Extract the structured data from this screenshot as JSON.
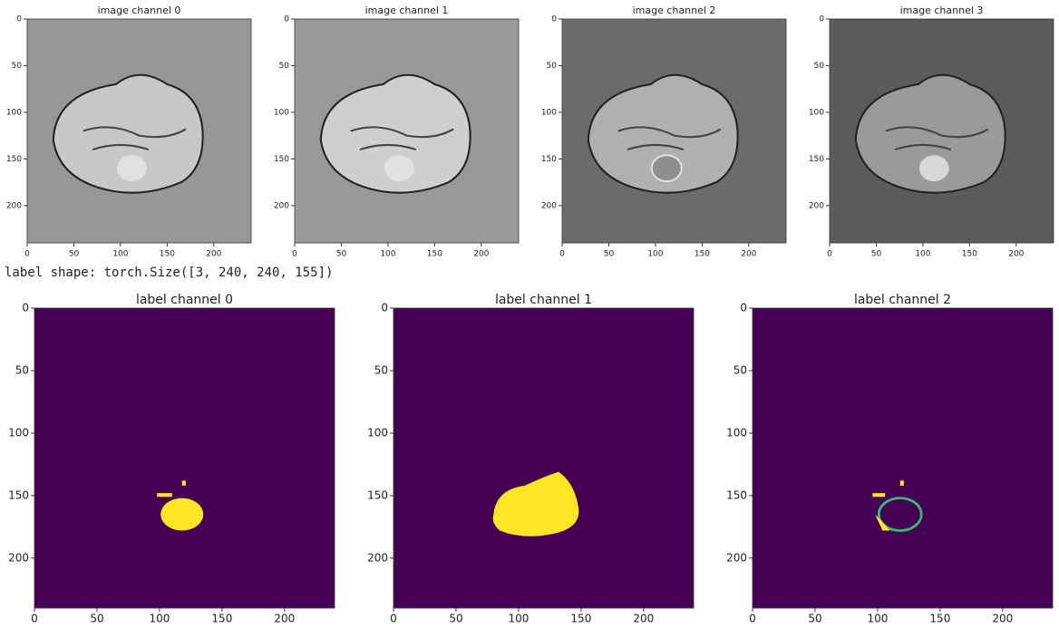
{
  "image_panels": [
    {
      "title": "image channel 0",
      "xticks": [
        0,
        50,
        100,
        150,
        200
      ],
      "yticks": [
        0,
        50,
        100,
        150,
        200
      ]
    },
    {
      "title": "image channel 1",
      "xticks": [
        0,
        50,
        100,
        150,
        200
      ],
      "yticks": [
        0,
        50,
        100,
        150,
        200
      ]
    },
    {
      "title": "image channel 2",
      "xticks": [
        0,
        50,
        100,
        150,
        200
      ],
      "yticks": [
        0,
        50,
        100,
        150,
        200
      ]
    },
    {
      "title": "image channel 3",
      "xticks": [
        0,
        50,
        100,
        150,
        200
      ],
      "yticks": [
        0,
        50,
        100,
        150,
        200
      ]
    }
  ],
  "output_text": "label shape: torch.Size([3, 240, 240, 155])",
  "label_panels": [
    {
      "title": "label channel 0",
      "xticks": [
        0,
        50,
        100,
        150,
        200
      ],
      "yticks": [
        0,
        50,
        100,
        150,
        200
      ]
    },
    {
      "title": "label channel 1",
      "xticks": [
        0,
        50,
        100,
        150,
        200
      ],
      "yticks": [
        0,
        50,
        100,
        150,
        200
      ]
    },
    {
      "title": "label channel 2",
      "xticks": [
        0,
        50,
        100,
        150,
        200
      ],
      "yticks": [
        0,
        50,
        100,
        150,
        200
      ]
    }
  ]
}
